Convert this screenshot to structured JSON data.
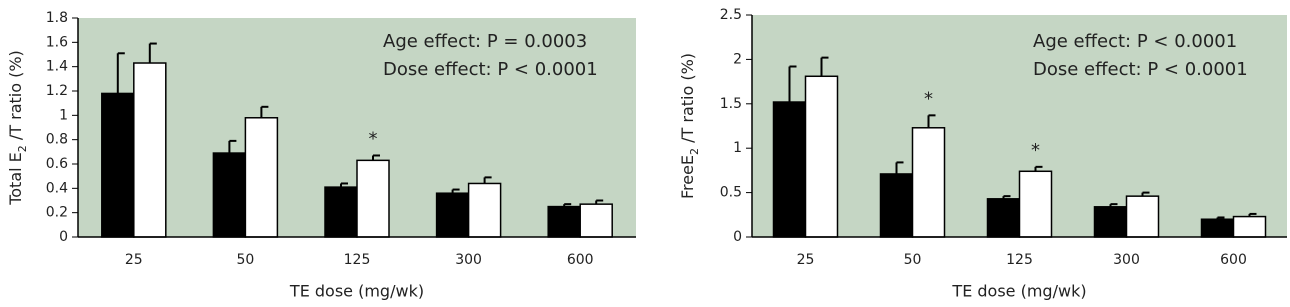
{
  "chart_data": [
    {
      "type": "bar",
      "y_label": [
        "Total E",
        "2",
        " /T ratio (%)"
      ],
      "x_label": "TE dose (mg/wk)",
      "annotations": [
        "Age effect: P = 0.0003",
        "Dose effect: P < 0.0001"
      ],
      "categories": [
        "25",
        "50",
        "125",
        "300",
        "600"
      ],
      "series": [
        {
          "color": "#000000",
          "values": [
            1.18,
            0.69,
            0.41,
            0.36,
            0.25
          ],
          "errors": [
            0.33,
            0.1,
            0.03,
            0.03,
            0.02
          ]
        },
        {
          "color": "#ffffff",
          "values": [
            1.43,
            0.98,
            0.63,
            0.44,
            0.27
          ],
          "errors": [
            0.16,
            0.09,
            0.04,
            0.05,
            0.03
          ]
        }
      ],
      "significance": [
        null,
        null,
        "*",
        null,
        null
      ],
      "ylim": [
        0,
        1.8
      ],
      "yticks": [
        0,
        0.2,
        0.4,
        0.6,
        0.8,
        1,
        1.2,
        1.4,
        1.6,
        1.8
      ],
      "background": "#c5d6c4"
    },
    {
      "type": "bar",
      "y_label": [
        "FreeE",
        "2",
        " /T ratio (%)"
      ],
      "x_label": "TE dose (mg/wk)",
      "annotations": [
        "Age effect: P < 0.0001",
        "Dose effect: P < 0.0001"
      ],
      "categories": [
        "25",
        "50",
        "125",
        "300",
        "600"
      ],
      "series": [
        {
          "color": "#000000",
          "values": [
            1.52,
            0.71,
            0.43,
            0.34,
            0.2
          ],
          "errors": [
            0.4,
            0.13,
            0.03,
            0.03,
            0.02
          ]
        },
        {
          "color": "#ffffff",
          "values": [
            1.81,
            1.23,
            0.74,
            0.46,
            0.23
          ],
          "errors": [
            0.21,
            0.14,
            0.05,
            0.04,
            0.03
          ]
        }
      ],
      "significance": [
        null,
        "*",
        "*",
        null,
        null
      ],
      "ylim": [
        0,
        2.5
      ],
      "yticks": [
        0,
        0.5,
        1,
        1.5,
        2,
        2.5
      ],
      "background": "#c5d6c4"
    }
  ]
}
